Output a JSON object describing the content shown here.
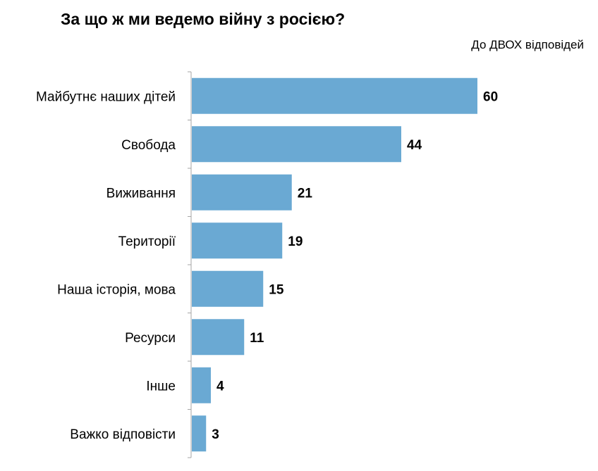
{
  "title": "За що ж ми ведемо війну з росією?",
  "subtitle": "До ДВОХ відповідей",
  "colors": {
    "bar": "#6aa9d3",
    "axis": "#a6a6a6",
    "text": "#000000"
  },
  "chart_data": {
    "type": "bar",
    "orientation": "horizontal",
    "title": "За що ж ми ведемо війну з росією?",
    "subtitle": "До ДВОХ відповідей",
    "categories": [
      "Майбутнє наших дітей",
      "Свобода",
      "Виживання",
      "Території",
      "Наша історія, мова",
      "Ресурси",
      "Інше",
      "Важко відповісти"
    ],
    "values": [
      60,
      44,
      21,
      19,
      15,
      11,
      4,
      3
    ],
    "xlim": [
      0,
      60
    ],
    "data_labels": true,
    "grid": false
  }
}
